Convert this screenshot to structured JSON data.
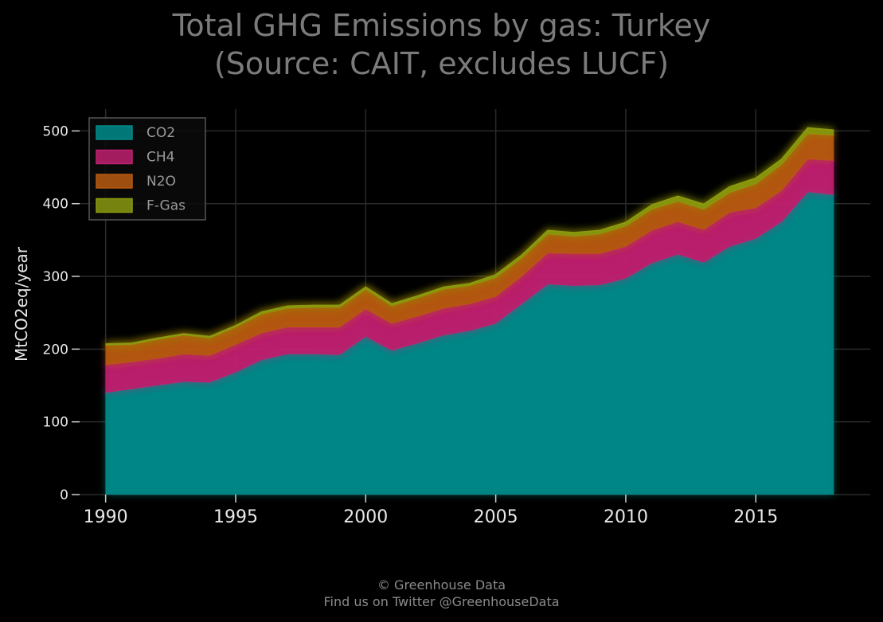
{
  "title_line1": "Total GHG Emissions by gas: Turkey",
  "title_line2": "(Source: CAIT, excludes LUCF)",
  "footer_line1": "© Greenhouse Data",
  "footer_line2": "Find us on Twitter @GreenhouseData",
  "colors": {
    "background": "#000000",
    "grid": "#2a2a2a",
    "CO2": "#008b8b",
    "CH4": "#c02070",
    "N2O": "#b85a10",
    "F-Gas": "#8a9a10"
  },
  "chart_data": {
    "type": "area",
    "stacked": true,
    "title": "Total GHG Emissions by gas: Turkey (Source: CAIT, excludes LUCF)",
    "xlabel": "",
    "ylabel": "MtCO2eq/year",
    "x": [
      1990,
      1991,
      1992,
      1993,
      1994,
      1995,
      1996,
      1997,
      1998,
      1999,
      2000,
      2001,
      2002,
      2003,
      2004,
      2005,
      2006,
      2007,
      2008,
      2009,
      2010,
      2011,
      2012,
      2013,
      2014,
      2015,
      2016,
      2017,
      2018
    ],
    "x_ticks": [
      1990,
      1995,
      2000,
      2005,
      2010,
      2015
    ],
    "y_ticks": [
      0,
      100,
      200,
      300,
      400,
      500
    ],
    "xlim": [
      1989,
      2019.4
    ],
    "ylim": [
      0,
      530
    ],
    "grid": true,
    "legend_position": "top-left",
    "series": [
      {
        "name": "CO2",
        "values": [
          140,
          145,
          150,
          155,
          154,
          168,
          185,
          193,
          193,
          192,
          217,
          198,
          208,
          219,
          225,
          235,
          262,
          289,
          287,
          288,
          297,
          318,
          330,
          319,
          341,
          352,
          375,
          416,
          412
        ]
      },
      {
        "name": "CH4",
        "values": [
          38,
          37,
          37,
          38,
          37,
          38,
          37,
          37,
          37,
          38,
          38,
          37,
          37,
          37,
          37,
          37,
          38,
          43,
          44,
          43,
          44,
          45,
          45,
          45,
          47,
          42,
          43,
          45,
          47
        ]
      },
      {
        "name": "N2O",
        "values": [
          27,
          24,
          26,
          26,
          24,
          24,
          26,
          26,
          27,
          27,
          27,
          24,
          25,
          26,
          25,
          26,
          25,
          26,
          24,
          27,
          28,
          29,
          28,
          28,
          27,
          33,
          36,
          35,
          35
        ]
      },
      {
        "name": "F-Gas",
        "values": [
          2,
          2,
          2,
          2,
          2,
          2,
          3,
          3,
          3,
          3,
          3,
          3,
          3,
          3,
          3,
          4,
          4,
          5,
          5,
          5,
          5,
          6,
          7,
          7,
          8,
          8,
          7,
          8,
          7
        ]
      }
    ]
  }
}
